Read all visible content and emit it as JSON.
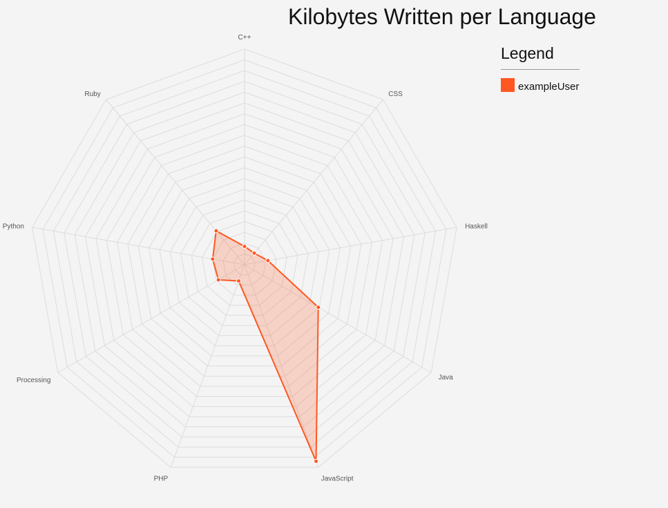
{
  "chart_data": {
    "type": "radar",
    "title": "Kilobytes Written per Language",
    "axes": [
      "C++",
      "CSS",
      "Haskell",
      "Java",
      "JavaScript",
      "PHP",
      "Processing",
      "Python",
      "Ruby"
    ],
    "max": 20,
    "levels": 20,
    "series": [
      {
        "name": "exampleUser",
        "color": "#ff5722",
        "values": [
          1.7,
          1.4,
          2.2,
          7.9,
          19.4,
          1.6,
          2.8,
          3.0,
          4.1
        ]
      }
    ],
    "grid": true,
    "legend": {
      "title": "Legend",
      "placement": "top-right"
    }
  }
}
